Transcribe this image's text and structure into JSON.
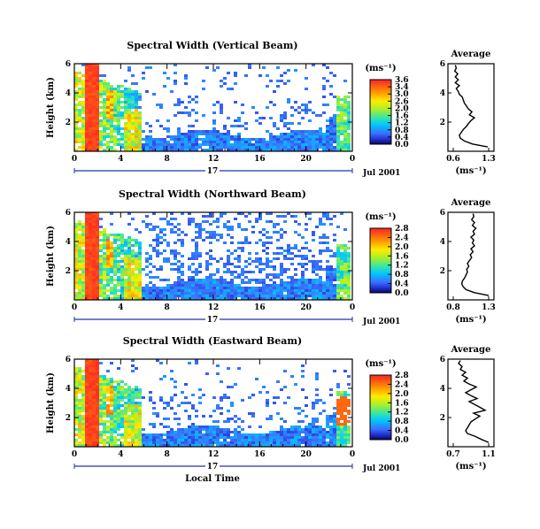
{
  "chart_data": [
    {
      "type": "heatmap",
      "title": "Spectral Width (Vertical Beam)",
      "ylabel": "Height (km)",
      "ylim": [
        0,
        6
      ],
      "yticks": [
        2,
        4,
        6
      ],
      "xticks": [
        "0",
        "4",
        "8",
        "12",
        "16",
        "20",
        "0"
      ],
      "day_label": "17",
      "date_label": "Jul 2001",
      "colorbar": {
        "unit": "(ms⁻¹)",
        "range": [
          0.0,
          3.6
        ],
        "ticks": [
          "3.6",
          "3.4",
          "3.0",
          "2.6",
          "2.0",
          "1.6",
          "1.2",
          "0.8",
          "0.4",
          "0.0"
        ]
      },
      "average_profile": {
        "title": "Average",
        "xlabel": "(ms⁻¹)",
        "xticks": [
          "0.6",
          "1.3"
        ],
        "xlim": [
          0.6,
          1.3
        ],
        "ylim": [
          0,
          6
        ],
        "yticks": [
          2,
          4,
          6
        ],
        "height_km": [
          0.3,
          0.5,
          0.7,
          0.9,
          1.1,
          1.3,
          1.5,
          1.7,
          1.9,
          2.1,
          2.3,
          2.5,
          2.7,
          2.9,
          3.1,
          3.3,
          3.5,
          3.7,
          3.9,
          4.1,
          4.3,
          4.5,
          4.7,
          4.9,
          5.1,
          5.3,
          5.5,
          5.7,
          5.9
        ],
        "width_ms": [
          1.28,
          0.98,
          0.82,
          0.74,
          0.72,
          0.76,
          0.8,
          0.86,
          0.9,
          0.95,
          1.02,
          0.92,
          0.97,
          0.9,
          0.86,
          0.82,
          0.8,
          0.78,
          0.72,
          0.7,
          0.66,
          0.72,
          0.64,
          0.7,
          0.64,
          0.69,
          0.63,
          0.66,
          0.64
        ]
      }
    },
    {
      "type": "heatmap",
      "title": "Spectral Width (Northward Beam)",
      "ylabel": "Height (km)",
      "ylim": [
        0,
        6
      ],
      "yticks": [
        2,
        4,
        6
      ],
      "xticks": [
        "0",
        "4",
        "8",
        "12",
        "16",
        "20",
        "0"
      ],
      "day_label": "17",
      "date_label": "Jul 2001",
      "colorbar": {
        "unit": "(ms⁻¹)",
        "range": [
          0.0,
          2.8
        ],
        "ticks": [
          "2.8",
          "2.4",
          "2.0",
          "1.6",
          "1.2",
          "0.8",
          "0.4",
          "0.0"
        ]
      },
      "average_profile": {
        "title": "Average",
        "xlabel": "(ms⁻¹)",
        "xticks": [
          "0.8",
          "1.3"
        ],
        "xlim": [
          0.8,
          1.3
        ],
        "ylim": [
          0,
          6
        ],
        "yticks": [
          2,
          4,
          6
        ],
        "height_km": [
          0.3,
          0.5,
          0.7,
          0.9,
          1.1,
          1.3,
          1.5,
          1.7,
          1.9,
          2.1,
          2.3,
          2.5,
          2.7,
          2.9,
          3.1,
          3.3,
          3.5,
          3.7,
          3.9,
          4.1,
          4.3,
          4.5,
          4.7,
          4.9,
          5.1,
          5.3,
          5.5,
          5.7,
          5.9
        ],
        "width_ms": [
          1.3,
          1.1,
          0.98,
          0.94,
          0.92,
          0.93,
          0.96,
          0.98,
          1.0,
          0.99,
          1.02,
          1.0,
          1.03,
          1.06,
          1.04,
          1.08,
          1.05,
          1.1,
          1.07,
          1.09,
          1.05,
          1.1,
          1.08,
          1.12,
          1.07,
          1.1,
          1.06,
          1.09,
          1.08
        ]
      }
    },
    {
      "type": "heatmap",
      "title": "Spectral Width (Eastward Beam)",
      "ylabel": "Height (km)",
      "xlabel": "Local Time",
      "ylim": [
        0,
        6
      ],
      "yticks": [
        2,
        4,
        6
      ],
      "xticks": [
        "0",
        "4",
        "8",
        "12",
        "16",
        "20",
        "0"
      ],
      "day_label": "17",
      "date_label": "Jul 2001",
      "colorbar": {
        "unit": "(ms⁻¹)",
        "range": [
          0.0,
          2.8
        ],
        "ticks": [
          "2.8",
          "2.4",
          "2.0",
          "1.6",
          "1.2",
          "0.8",
          "0.4",
          "0.0"
        ]
      },
      "average_profile": {
        "title": "Average",
        "xlabel": "(ms⁻¹)",
        "xticks": [
          "0.7",
          "1.1"
        ],
        "xlim": [
          0.7,
          1.1
        ],
        "ylim": [
          0,
          6
        ],
        "yticks": [
          2,
          4,
          6
        ],
        "height_km": [
          0.3,
          0.5,
          0.7,
          0.9,
          1.1,
          1.3,
          1.5,
          1.7,
          1.9,
          2.1,
          2.3,
          2.5,
          2.7,
          2.9,
          3.1,
          3.3,
          3.5,
          3.7,
          3.9,
          4.1,
          4.3,
          4.5,
          4.7,
          4.9,
          5.1,
          5.3,
          5.5,
          5.7,
          5.9
        ],
        "width_ms": [
          1.1,
          1.02,
          0.95,
          0.86,
          0.84,
          0.86,
          0.88,
          0.9,
          0.95,
          1.0,
          0.93,
          1.06,
          1.0,
          0.94,
          0.88,
          0.97,
          0.9,
          0.84,
          0.9,
          0.96,
          0.88,
          0.82,
          0.86,
          0.8,
          0.84,
          0.78,
          0.8,
          0.76,
          0.78
        ]
      }
    }
  ]
}
